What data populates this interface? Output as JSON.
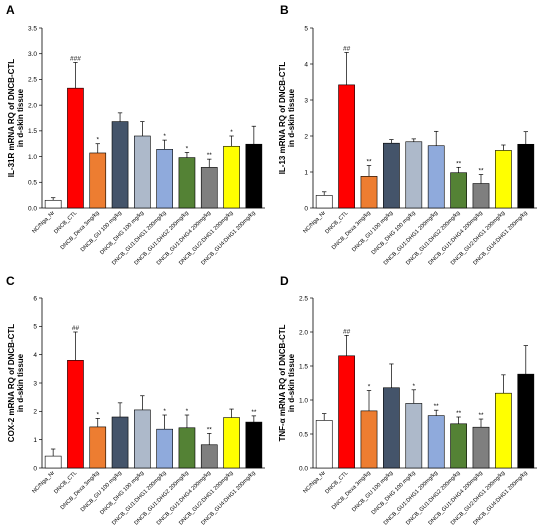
{
  "categories": [
    "NC/Nga_Nr",
    "DNCB_CTL",
    "DNCB_Dexa 3mg/kg",
    "DNCB_GU 100 mg/kg",
    "DNCB_DHG 100 mg/kg",
    "DNCB_GU1:DHG1 200mg/kg",
    "DNCB_GU1:DHG2 200mg/kg",
    "DNCB_GU1:DHG4 200mg/kg",
    "DNCB_GU2:DHG1 200mg/kg",
    "DNCB_GU4:DHG1 200mg/kg"
  ],
  "colors": [
    "#ffffff",
    "#ff0000",
    "#ed7d31",
    "#44546a",
    "#adb9ca",
    "#8faadc",
    "#548235",
    "#7f7f7f",
    "#ffff00",
    "#000000"
  ],
  "chart_data": [
    {
      "panel": "A",
      "type": "bar",
      "ylabel": "IL-31R mRNA RQ of DNCB-CTL\nin d-skin tissue",
      "ylim": [
        0,
        3.5
      ],
      "yticks": [
        0.0,
        0.5,
        1.0,
        1.5,
        2.0,
        2.5,
        3.0,
        3.5
      ],
      "values": [
        0.15,
        2.33,
        1.07,
        1.68,
        1.4,
        1.14,
        0.98,
        0.79,
        1.2,
        1.24
      ],
      "errors": [
        0.05,
        0.5,
        0.18,
        0.17,
        0.28,
        0.18,
        0.1,
        0.16,
        0.2,
        0.35
      ],
      "annotations": [
        "",
        "###",
        "*",
        "",
        "",
        "*",
        "*",
        "**",
        "*",
        ""
      ]
    },
    {
      "panel": "B",
      "type": "bar",
      "ylabel": "IL-13 mRNA RQ of DNCB-CTL\nin d-skin tissue",
      "ylim": [
        0,
        5
      ],
      "yticks": [
        0,
        1,
        2,
        3,
        4,
        5
      ],
      "values": [
        0.35,
        3.42,
        0.88,
        1.8,
        1.84,
        1.73,
        0.98,
        0.68,
        1.6,
        1.77
      ],
      "errors": [
        0.1,
        0.9,
        0.3,
        0.1,
        0.08,
        0.4,
        0.15,
        0.25,
        0.15,
        0.35
      ],
      "annotations": [
        "",
        "##",
        "**",
        "",
        "",
        "",
        "**",
        "**",
        "",
        ""
      ]
    },
    {
      "panel": "C",
      "type": "bar",
      "ylabel": "COX-2 mRNA RQ of DNCB-CTL\nin d-skin tissue",
      "ylim": [
        0,
        6
      ],
      "yticks": [
        0,
        1,
        2,
        3,
        4,
        5,
        6
      ],
      "values": [
        0.42,
        3.8,
        1.45,
        1.8,
        2.05,
        1.37,
        1.42,
        0.82,
        1.78,
        1.62
      ],
      "errors": [
        0.25,
        1.0,
        0.3,
        0.5,
        0.5,
        0.5,
        0.45,
        0.4,
        0.3,
        0.22
      ],
      "annotations": [
        "",
        "##",
        "*",
        "",
        "",
        "*",
        "*",
        "**",
        "",
        "**"
      ]
    },
    {
      "panel": "D",
      "type": "bar",
      "ylabel": "TNF-α mRNA RQ of DNCB-CTL\nin d-skin tissue",
      "ylim": [
        0,
        2.5
      ],
      "yticks": [
        0.0,
        0.5,
        1.0,
        1.5,
        2.0,
        2.5
      ],
      "values": [
        0.7,
        1.65,
        0.84,
        1.18,
        0.95,
        0.77,
        0.65,
        0.6,
        1.1,
        1.38
      ],
      "errors": [
        0.1,
        0.3,
        0.3,
        0.35,
        0.2,
        0.08,
        0.1,
        0.12,
        0.27,
        0.42
      ],
      "annotations": [
        "",
        "##",
        "*",
        "",
        "*",
        "**",
        "**",
        "**",
        "",
        ""
      ]
    }
  ]
}
